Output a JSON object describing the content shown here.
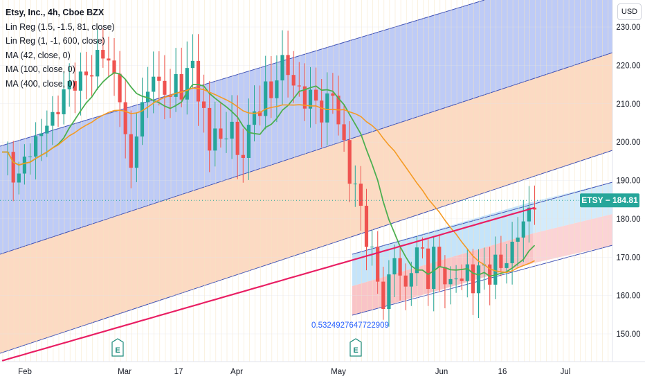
{
  "chart_data": {
    "type": "candlestick",
    "symbol_title": "Etsy, Inc., 4h, Cboe BZX",
    "currency": "USD",
    "indicators": [
      {
        "label": "Lin Reg (1.5, -1.5, 81, close)",
        "color": "#7b8fd6"
      },
      {
        "label": "Lin Reg (1, -1, 600, close)",
        "color": "#f2a070"
      },
      {
        "label": "MA (42, close, 0)",
        "color": "#4caf50"
      },
      {
        "label": "MA (100, close, 0)",
        "color": "#f59a23"
      },
      {
        "label": "MA (400, close, 0)",
        "color": "#e91e63"
      }
    ],
    "y_axis": {
      "ticks": [
        150,
        160,
        170,
        180,
        190,
        200,
        210,
        220,
        230
      ],
      "tick_labels": [
        "150.00",
        "160.00",
        "170.00",
        "180.00",
        "190.00",
        "200.00",
        "210.00",
        "220.00",
        "230.00"
      ],
      "ylim": [
        143,
        238
      ]
    },
    "x_axis": {
      "tick_labels": [
        "Feb",
        "Mar",
        "17",
        "Apr",
        "May",
        "Jun",
        "16",
        "Jul"
      ]
    },
    "last_price": {
      "ticker": "ETSY",
      "value": 184.81,
      "label": "184.81",
      "color": "#26a69a"
    },
    "annotation": "0.5324927647722909",
    "event_markers": [
      "E",
      "E"
    ],
    "colors": {
      "up": "#26a69a",
      "down": "#ef5350",
      "blue_band": "#b3c2f5",
      "orange_band": "#fbd3b8",
      "lightblue_band": "#c2e3fa",
      "pink_band": "#f9c1c4",
      "ma42": "#4caf50",
      "ma100": "#f59a23",
      "ma400": "#e91e63"
    },
    "close_path": [
      [
        1,
        196
      ],
      [
        3,
        190
      ],
      [
        5,
        199
      ],
      [
        7,
        202
      ],
      [
        9,
        207
      ],
      [
        11,
        212
      ],
      [
        13,
        217
      ],
      [
        15,
        216
      ],
      [
        17,
        223
      ],
      [
        19,
        221
      ],
      [
        21,
        213
      ],
      [
        22,
        200
      ],
      [
        23,
        192
      ],
      [
        24,
        205
      ],
      [
        26,
        212
      ],
      [
        27,
        219
      ],
      [
        28,
        215
      ],
      [
        30,
        211
      ],
      [
        31,
        217
      ],
      [
        32,
        214
      ],
      [
        34,
        220
      ],
      [
        35,
        214
      ],
      [
        36,
        207
      ],
      [
        37,
        197
      ],
      [
        38,
        205
      ],
      [
        39,
        200
      ],
      [
        41,
        204
      ],
      [
        42,
        196
      ],
      [
        44,
        202
      ],
      [
        45,
        207
      ],
      [
        46,
        210
      ],
      [
        47,
        214
      ],
      [
        48,
        211
      ],
      [
        49,
        217
      ],
      [
        50,
        222
      ],
      [
        51,
        219
      ],
      [
        52,
        213
      ],
      [
        53,
        214
      ],
      [
        54,
        212
      ],
      [
        55,
        211
      ],
      [
        56,
        210
      ],
      [
        57,
        208
      ],
      [
        58,
        211
      ],
      [
        59,
        212
      ],
      [
        60,
        205
      ],
      [
        61,
        200
      ],
      [
        62,
        191
      ],
      [
        63,
        187
      ],
      [
        64,
        183
      ],
      [
        65,
        176
      ],
      [
        66,
        170
      ],
      [
        67,
        163
      ],
      [
        68,
        159
      ],
      [
        69,
        164
      ],
      [
        70,
        170
      ],
      [
        71,
        165
      ],
      [
        72,
        162
      ],
      [
        73,
        168
      ],
      [
        74,
        170
      ],
      [
        75,
        172
      ],
      [
        76,
        165
      ],
      [
        77,
        170
      ],
      [
        78,
        167
      ],
      [
        79,
        165
      ],
      [
        80,
        163
      ],
      [
        81,
        165
      ],
      [
        82,
        163
      ],
      [
        83,
        168
      ],
      [
        84,
        163
      ],
      [
        85,
        165
      ],
      [
        86,
        168
      ],
      [
        87,
        166
      ],
      [
        88,
        168
      ],
      [
        89,
        167
      ],
      [
        90,
        170
      ],
      [
        91,
        173
      ],
      [
        92,
        176
      ],
      [
        93,
        178
      ],
      [
        94,
        183
      ],
      [
        95,
        185
      ]
    ]
  }
}
